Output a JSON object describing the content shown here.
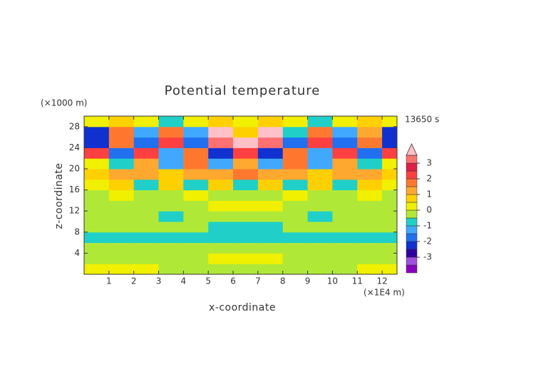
{
  "chart_data": {
    "type": "contour",
    "title": "Potential temperature",
    "x_label": "x-coordinate",
    "y_label": "z-coordinate",
    "x_unit": "(×1E4 m)",
    "y_unit": "(×1000 m)",
    "time_label": "13650 s",
    "xlim": [
      0,
      12.6
    ],
    "ylim": [
      0,
      30
    ],
    "xticks": [
      1,
      2,
      3,
      4,
      5,
      6,
      7,
      8,
      9,
      10,
      11,
      12
    ],
    "yticks": [
      4,
      8,
      12,
      16,
      20,
      24,
      28
    ],
    "x": [
      0.5,
      1.5,
      2.5,
      3.5,
      4.5,
      5.5,
      6.5,
      7.5,
      8.5,
      9.5,
      10.5,
      11.5,
      12.5
    ],
    "y": [
      1,
      3,
      5,
      7,
      9,
      11,
      13,
      15,
      17,
      19,
      21,
      23,
      25,
      27,
      29
    ],
    "z": [
      [
        0.2,
        0.2,
        0.2,
        -0.2,
        -0.2,
        -0.2,
        -0.2,
        -0.2,
        -0.2,
        -0.2,
        -0.2,
        0.2,
        0.2
      ],
      [
        -0.2,
        -0.2,
        -0.2,
        -0.2,
        -0.2,
        0.2,
        0.2,
        0.2,
        -0.2,
        -0.2,
        -0.2,
        -0.2,
        -0.2
      ],
      [
        -0.3,
        -0.3,
        -0.3,
        -0.3,
        -0.3,
        -0.3,
        -0.3,
        -0.3,
        -0.3,
        -0.3,
        -0.3,
        -0.3,
        -0.3
      ],
      [
        -0.7,
        -0.7,
        -0.7,
        -0.7,
        -0.7,
        -0.7,
        -0.7,
        -0.7,
        -0.7,
        -0.7,
        -0.7,
        -0.7,
        -0.7
      ],
      [
        -0.3,
        -0.3,
        -0.3,
        -0.3,
        -0.3,
        -0.7,
        -0.7,
        -0.7,
        -0.3,
        -0.3,
        -0.3,
        -0.3,
        -0.3
      ],
      [
        -0.2,
        -0.2,
        -0.2,
        -0.7,
        -0.2,
        -0.2,
        -0.2,
        -0.2,
        -0.2,
        -0.7,
        -0.2,
        -0.2,
        -0.2
      ],
      [
        -0.2,
        -0.2,
        -0.2,
        -0.2,
        -0.2,
        0.3,
        0.3,
        0.3,
        -0.2,
        -0.2,
        -0.2,
        -0.2,
        -0.2
      ],
      [
        -0.2,
        0.3,
        -0.2,
        -0.2,
        0.3,
        -0.2,
        -0.2,
        -0.2,
        0.3,
        -0.2,
        -0.2,
        0.3,
        -0.2
      ],
      [
        0.3,
        0.7,
        -0.7,
        0.7,
        -0.7,
        0.7,
        -0.7,
        0.7,
        -0.7,
        0.7,
        -0.7,
        0.7,
        0.3
      ],
      [
        0.7,
        1.2,
        1.2,
        0.7,
        1.2,
        1.2,
        1.7,
        1.2,
        1.2,
        0.7,
        1.2,
        1.2,
        0.7
      ],
      [
        0.3,
        -0.7,
        1.2,
        -1.2,
        1.7,
        -1.2,
        1.2,
        -1.2,
        1.7,
        -1.2,
        1.2,
        -0.7,
        0.3
      ],
      [
        2.2,
        -1.8,
        2.2,
        -1.3,
        1.8,
        -2.2,
        2.3,
        -2.2,
        1.8,
        -1.3,
        2.2,
        -1.8,
        2.2
      ],
      [
        -2.2,
        1.8,
        -1.8,
        2.2,
        -1.7,
        3.2,
        3.8,
        3.2,
        -1.7,
        2.2,
        -1.8,
        1.8,
        -2.2
      ],
      [
        -2.5,
        1.5,
        -1.3,
        1.8,
        -1.2,
        3.7,
        0.7,
        3.7,
        -1.0,
        1.6,
        -1.5,
        1.2,
        -2.3
      ],
      [
        0.3,
        0.7,
        0.3,
        -0.7,
        0.3,
        0.7,
        0.3,
        0.7,
        0.3,
        -0.7,
        0.3,
        0.7,
        0.3
      ]
    ],
    "levels": [
      -4,
      -3.5,
      -3,
      -2.5,
      -2,
      -1.5,
      -1,
      -0.5,
      0,
      0.5,
      1,
      1.5,
      2,
      2.5,
      3,
      3.5
    ],
    "colors": [
      "#8a00c0",
      "#a050e0",
      "#3000a0",
      "#1030d0",
      "#2070f0",
      "#40a8ff",
      "#20d0c8",
      "#b0e838",
      "#f0f000",
      "#ffd000",
      "#ffa830",
      "#ff7830",
      "#ff4040",
      "#e02048",
      "#ff7070",
      "#ffc0c8"
    ],
    "colorbar_ticks": [
      -3,
      -2,
      -1,
      0,
      1,
      2,
      3
    ]
  }
}
